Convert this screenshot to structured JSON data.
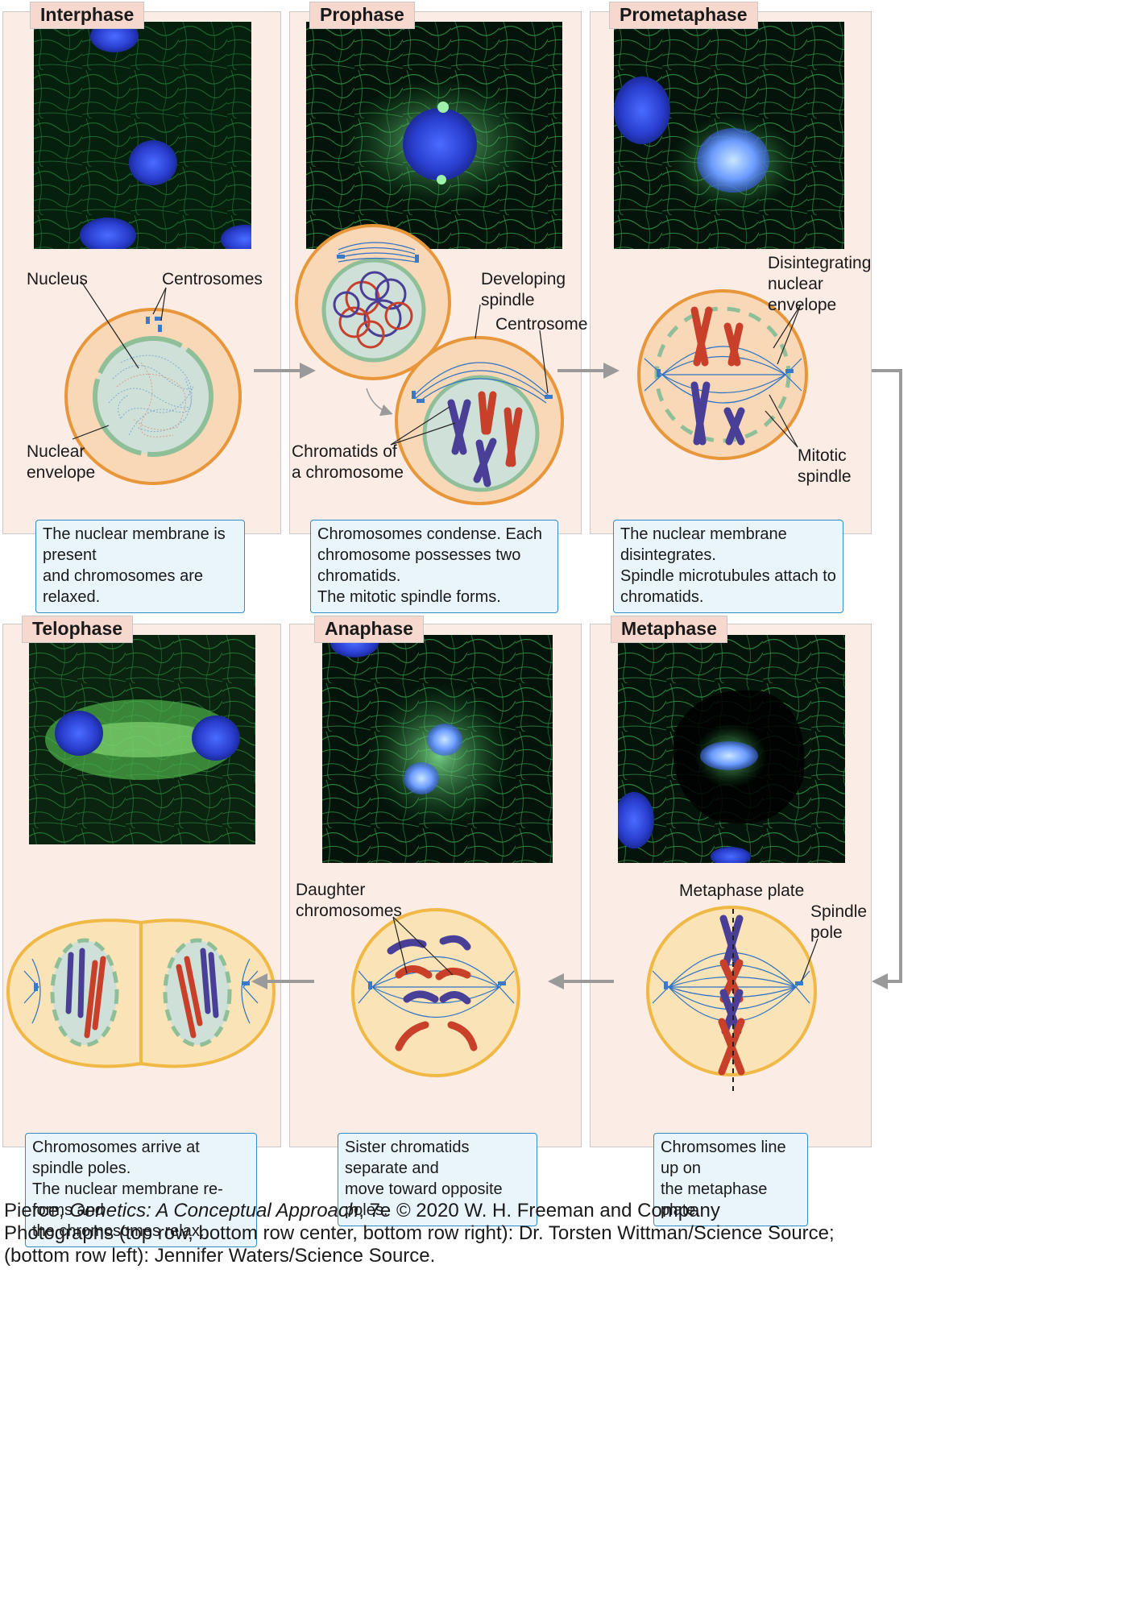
{
  "stages": {
    "interphase": {
      "title": "Interphase",
      "caption": [
        "The nuclear membrane is present",
        "and chromosomes are relaxed."
      ]
    },
    "prophase": {
      "title": "Prophase",
      "caption": [
        "Chromosomes condense. Each",
        "chromosome possesses two chromatids.",
        "The mitotic spindle forms."
      ]
    },
    "prometaphase": {
      "title": "Prometaphase",
      "caption": [
        "The nuclear membrane disintegrates.",
        "Spindle microtubules attach to",
        "chromatids."
      ]
    },
    "telophase": {
      "title": "Telophase",
      "caption": [
        "Chromosomes arrive at spindle poles.",
        "The nuclear membrane re-forms and",
        "the chromosomes relax."
      ]
    },
    "anaphase": {
      "title": "Anaphase",
      "caption": [
        "Sister chromatids separate and",
        "move toward opposite poles."
      ]
    },
    "metaphase": {
      "title": "Metaphase",
      "caption": [
        "Chromsomes line up on",
        "the metaphase plate."
      ]
    }
  },
  "labels": {
    "nucleus": "Nucleus",
    "centrosomes": "Centrosomes",
    "nuclear_envelope": [
      "Nuclear",
      "envelope"
    ],
    "developing_spindle": [
      "Developing",
      "spindle"
    ],
    "centrosome": "Centrosome",
    "chromatids_of_chromosome": [
      "Chromatids of",
      "a chromosome"
    ],
    "disintegrating_envelope": [
      "Disintegrating",
      "nuclear",
      "envelope"
    ],
    "mitotic_spindle": [
      "Mitotic",
      "spindle"
    ],
    "daughter_chromosomes": [
      "Daughter",
      "chromosomes"
    ],
    "metaphase_plate": "Metaphase plate",
    "spindle_pole": [
      "Spindle",
      "pole"
    ]
  },
  "credits": {
    "author": "Pierce, ",
    "book_title": "Genetics: A Conceptual Approach",
    "edition": ", 7e © 2020 W. H. Freeman and Company",
    "photos_line1": "Photographs (top row, bottom row center, bottom row right): Dr. Torsten Wittman/Science Source;",
    "photos_line2": "(bottom row left): Jennifer Waters/Science Source."
  },
  "colors": {
    "panel_bg": "#fbece6",
    "tag_bg": "#f6d8cf",
    "caption_border": "#2f8fc8",
    "caption_bg": "#eaf4fb",
    "cell_top": "#e8963a",
    "cell_bottom": "#f0b845",
    "nucleus_fill": "#cfe0d9",
    "nuclear_envelope": "#8fbf98",
    "chromosome_red": "#c8402a",
    "chromosome_blue": "#4a3f96",
    "spindle_blue": "#2f72c4",
    "arrow_gray": "#9a9a9a"
  }
}
